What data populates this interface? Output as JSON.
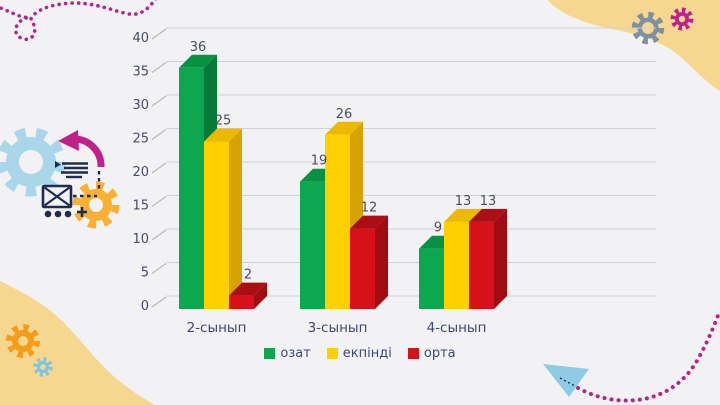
{
  "slide": {
    "kind": "presentation-slide-with-chart"
  },
  "theme": {
    "bg": "#f2f2f4",
    "blob": "#f6d78f",
    "magenta": "#b32589",
    "magenta2": "#c02189",
    "navy": "#1e2c50",
    "lightblue": "#a9d6e9",
    "gearyellow": "#f8b133",
    "gearorange": "#f59d18",
    "gearbluesmall": "#7fc4e2",
    "gearslate": "#7d90a4",
    "gearmagenta": "#bf2190",
    "plane": "#8fcbe4",
    "grid": "#cfd3d9",
    "tick": "#b4b8c0",
    "axisText": "#474b68",
    "valueText": "#4a4e60",
    "categoryText": "#42486a",
    "legendText": "#3b4876"
  },
  "chart_data": {
    "type": "bar",
    "style": "3d-clustered-column",
    "title": "",
    "xlabel": "",
    "ylabel": "",
    "categories": [
      "2-сынып",
      "3-сынып",
      "4-сынып"
    ],
    "series": [
      {
        "name": "озат",
        "color": "#0ca74f",
        "top": "#079143",
        "side": "#077a39",
        "values": [
          36,
          19,
          9
        ]
      },
      {
        "name": "екпінді",
        "color": "#ffd000",
        "top": "#edb900",
        "side": "#d6a300",
        "values": [
          25,
          26,
          13
        ]
      },
      {
        "name": "орта",
        "color": "#d5121a",
        "top": "#ab0e13",
        "side": "#a00c11",
        "values": [
          2,
          12,
          13
        ]
      }
    ],
    "yticks": [
      0,
      5,
      10,
      15,
      20,
      25,
      30,
      35,
      40
    ],
    "ylim": [
      0,
      40
    ],
    "grid": true,
    "legend_position": "bottom"
  },
  "decor": {
    "top_left": [
      {
        "icon": "dotted-squiggle-line",
        "color": "#b32589"
      }
    ],
    "left_illustration": [
      {
        "icon": "gear-icon",
        "color": "#a9d6e9"
      },
      {
        "icon": "gear-icon",
        "color": "#f8b133"
      },
      {
        "icon": "curved-arrow-icon",
        "color": "#c02189"
      },
      {
        "icon": "envelope-icon",
        "color": "#1e2c50"
      },
      {
        "icon": "text-lines-icon",
        "color": "#1e2c50"
      },
      {
        "icon": "ellipsis-dots-icon",
        "color": "#1e2c50"
      },
      {
        "icon": "plus-icon",
        "color": "#1e2c50"
      },
      {
        "icon": "dashed-connector-line",
        "color": "#1e2c50"
      }
    ],
    "top_right": [
      {
        "icon": "corner-blob",
        "color": "#f6d78f"
      },
      {
        "icon": "gear-icon",
        "color": "#7d90a4"
      },
      {
        "icon": "gear-icon",
        "color": "#bf2190"
      }
    ],
    "bottom_left": [
      {
        "icon": "corner-blob",
        "color": "#f6d78f"
      },
      {
        "icon": "gear-icon",
        "color": "#f59d18"
      },
      {
        "icon": "gear-icon",
        "color": "#7fc4e2"
      }
    ],
    "bottom_right": [
      {
        "icon": "paper-plane-icon",
        "color": "#8fcbe4"
      },
      {
        "icon": "dotted-squiggle-line",
        "color": "#b32589"
      }
    ]
  }
}
